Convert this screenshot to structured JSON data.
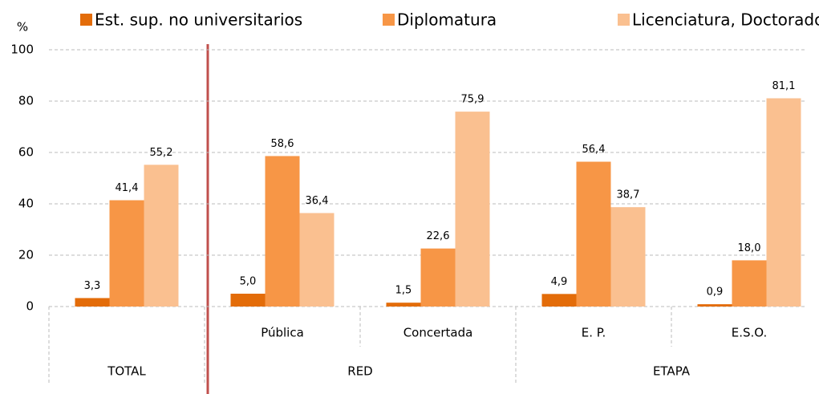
{
  "chart_data": {
    "type": "bar",
    "y_label": "%",
    "categories": [
      null,
      "Pública",
      "Concertada",
      "E. P.",
      "E.S.O."
    ],
    "category_groups": [
      "TOTAL",
      "RED",
      "RED",
      "ETAPA",
      "ETAPA"
    ],
    "series": [
      {
        "name": "Est. sup. no universitarios",
        "color": "#e36c09",
        "values": [
          3.3,
          5.0,
          1.5,
          4.9,
          0.9
        ],
        "value_labels": [
          "3,3",
          "5,0",
          "1,5",
          "4,9",
          "0,9"
        ]
      },
      {
        "name": "Diplomatura",
        "color": "#f79646",
        "values": [
          41.4,
          58.6,
          22.6,
          56.4,
          18.0
        ],
        "value_labels": [
          "41,4",
          "58,6",
          "22,6",
          "56,4",
          "18,0"
        ]
      },
      {
        "name": "Licenciatura, Doctorado",
        "color": "#fac090",
        "values": [
          55.2,
          36.4,
          75.9,
          38.7,
          81.1
        ],
        "value_labels": [
          "55,2",
          "36,4",
          "75,9",
          "38,7",
          "81,1"
        ]
      }
    ],
    "ylim": [
      0,
      100
    ],
    "yticks": [
      0,
      20,
      40,
      60,
      80,
      100
    ],
    "grid": true,
    "legend": "top"
  }
}
